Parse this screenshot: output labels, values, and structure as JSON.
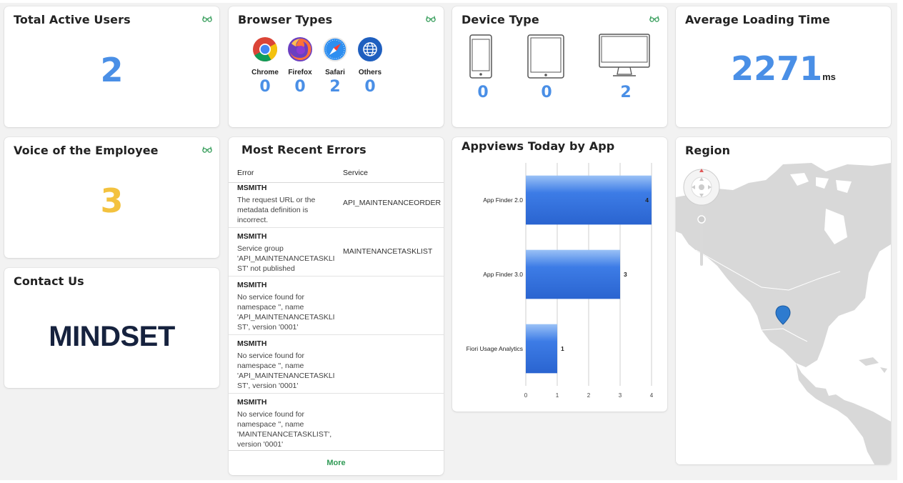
{
  "cards": {
    "total_active_users": {
      "title": "Total Active Users",
      "value": "2"
    },
    "browser_types": {
      "title": "Browser Types",
      "browsers": [
        {
          "label": "Chrome",
          "count": "0",
          "icon": "chrome-icon"
        },
        {
          "label": "Firefox",
          "count": "0",
          "icon": "firefox-icon"
        },
        {
          "label": "Safari",
          "count": "2",
          "icon": "safari-icon"
        },
        {
          "label": "Others",
          "count": "0",
          "icon": "globe-icon"
        }
      ]
    },
    "device_type": {
      "title": "Device Type",
      "devices": [
        {
          "icon": "phone-icon",
          "count": "0"
        },
        {
          "icon": "tablet-icon",
          "count": "0"
        },
        {
          "icon": "desktop-icon",
          "count": "2"
        }
      ]
    },
    "average_loading_time": {
      "title": "Average Loading Time",
      "value": "2271",
      "unit": "ms"
    },
    "voice_of_employee": {
      "title": "Voice of the Employee",
      "value": "3"
    },
    "contact_us": {
      "title": "Contact Us",
      "logo_text": "MINDSET"
    },
    "most_recent_errors": {
      "title": "Most Recent Errors",
      "columns": [
        "Error",
        "Service"
      ],
      "rows": [
        {
          "user": "MSMITH",
          "message": "The request URL or the metadata definition is incorrect.",
          "service": "API_MAINTENANCEORDER"
        },
        {
          "user": "MSMITH",
          "message": "Service group 'API_MAINTENANCETASKLI ST' not published",
          "service": "MAINTENANCETASKLIST"
        },
        {
          "user": "MSMITH",
          "message": "No service found for namespace '', name 'API_MAINTENANCETASKLI ST', version '0001'",
          "service": ""
        },
        {
          "user": "MSMITH",
          "message": "No service found for namespace '', name 'API_MAINTENANCETASKLI ST', version '0001'",
          "service": ""
        },
        {
          "user": "MSMITH",
          "message": "No service found for namespace '', name 'MAINTENANCETASKLIST', version '0001'",
          "service": ""
        }
      ],
      "more_label": "More"
    },
    "appviews": {
      "title": "Appviews Today by App"
    },
    "region": {
      "title": "Region"
    }
  },
  "colors": {
    "kpi_blue": "#4a8fe6",
    "kpi_yellow": "#f3c23f",
    "accent_green": "#2f9a55",
    "bar_blue": "#3d7ce6",
    "logo_navy": "#16223e"
  },
  "chart_data": {
    "type": "bar",
    "orientation": "horizontal",
    "title": "Appviews Today by App",
    "categories": [
      "App Finder 2.0",
      "App Finder 3.0",
      "Fiori Usage Analytics"
    ],
    "values": [
      4,
      3,
      1
    ],
    "xlim": [
      0,
      4
    ],
    "xticks": [
      "0",
      "1",
      "2",
      "3",
      "4"
    ],
    "grid": true
  }
}
